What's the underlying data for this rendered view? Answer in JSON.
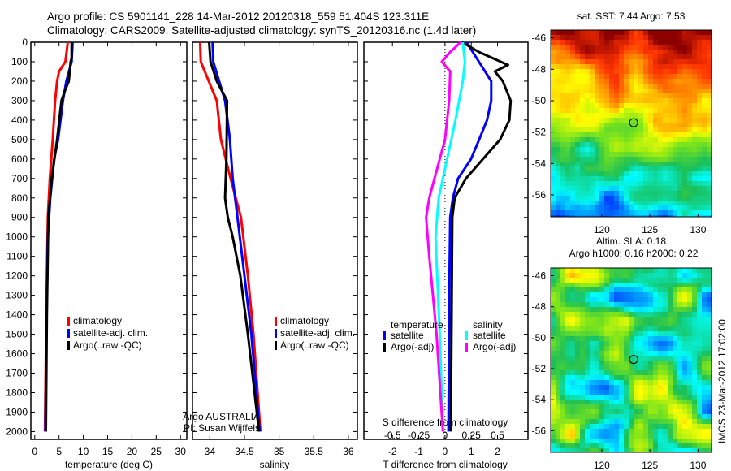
{
  "title_line1": "Argo profile: CS 5901141_228 14-Mar-2012 20120318_559 51.404S 123.311E",
  "title_line2": "Climatology: CARS2009. Satellite-adjusted climatology: synTS_20120316.nc (1.4d later)",
  "colors": {
    "climatology": "#ff0000",
    "satellite": "#0000ff",
    "argo": "#000000",
    "s_satellite": "#00ffff",
    "s_argo": "#ff00ff"
  },
  "chart_data": [
    {
      "type": "line",
      "id": "temperature",
      "xlabel": "temperature (deg C)",
      "ylabel": "depth",
      "xlim": [
        -0.8,
        31.3
      ],
      "ylim": [
        0,
        2040
      ],
      "y_reversed": true,
      "xticks": [
        0,
        5,
        10,
        15,
        20,
        25,
        30
      ],
      "yticks": [
        0,
        100,
        200,
        300,
        400,
        500,
        600,
        700,
        800,
        900,
        1000,
        1100,
        1200,
        1300,
        1400,
        1500,
        1600,
        1700,
        1800,
        1900,
        2000
      ],
      "legend": [
        "climatology",
        "satellite-adj. clim.",
        "Argo(..raw -QC)"
      ],
      "series": [
        {
          "name": "climatology",
          "color": "#ff0000",
          "depth": [
            0,
            100,
            150,
            200,
            300,
            500,
            700,
            900,
            1200,
            1600,
            2000
          ],
          "values": [
            6.8,
            6.3,
            5.0,
            4.6,
            4.2,
            3.7,
            3.1,
            2.7,
            2.5,
            2.3,
            2.1
          ]
        },
        {
          "name": "satellite-adj. clim.",
          "color": "#0000ff",
          "depth": [
            0,
            100,
            200,
            300,
            400,
            500,
            600,
            800,
            1000,
            1500,
            2000
          ],
          "values": [
            7.8,
            7.6,
            6.5,
            5.8,
            5.3,
            4.8,
            4.0,
            3.2,
            2.7,
            2.4,
            2.2
          ]
        },
        {
          "name": "Argo(..raw -QC)",
          "color": "#000000",
          "depth": [
            0,
            80,
            100,
            200,
            250,
            300,
            500,
            700,
            900,
            1400,
            2000
          ],
          "values": [
            7.6,
            7.6,
            7.4,
            7.0,
            6.2,
            5.5,
            4.6,
            3.5,
            2.8,
            2.5,
            2.3
          ]
        }
      ]
    },
    {
      "type": "line",
      "id": "salinity",
      "xlabel": "salinity",
      "xlim": [
        33.75,
        36.13
      ],
      "ylim": [
        0,
        2040
      ],
      "y_reversed": true,
      "xticks": [
        34,
        34.5,
        35,
        35.5,
        36
      ],
      "legend": [
        "climatology",
        "satellite-adj. clim.",
        "Argo(..raw -QC)"
      ],
      "annotation": [
        "Argo AUSTRALIA",
        "PI: Susan Wijffels"
      ],
      "series": [
        {
          "name": "climatology",
          "color": "#ff0000",
          "depth": [
            0,
            100,
            300,
            500,
            700,
            900,
            1200,
            1500,
            2000
          ],
          "values": [
            33.86,
            33.87,
            34.1,
            34.16,
            34.3,
            34.45,
            34.55,
            34.63,
            34.73
          ]
        },
        {
          "name": "satellite-adj. clim.",
          "color": "#0000ff",
          "depth": [
            0,
            100,
            300,
            500,
            700,
            900,
            1200,
            1500,
            2000
          ],
          "values": [
            34.04,
            34.05,
            34.22,
            34.29,
            34.33,
            34.4,
            34.5,
            34.6,
            34.72
          ]
        },
        {
          "name": "Argo(..raw -QC)",
          "color": "#000000",
          "depth": [
            0,
            100,
            200,
            300,
            600,
            800,
            900,
            1000,
            1200,
            1500,
            2000
          ],
          "values": [
            33.99,
            34.01,
            34.1,
            34.25,
            34.24,
            34.22,
            34.26,
            34.33,
            34.44,
            34.55,
            34.71
          ]
        }
      ]
    },
    {
      "type": "line",
      "id": "difference",
      "xlabel": "T difference from climatology",
      "x2label": "S difference from climatology",
      "xlim": [
        -3.09,
        3.16
      ],
      "ylim": [
        0,
        2040
      ],
      "y_reversed": true,
      "xticks": [
        -2,
        -1,
        0,
        1,
        2
      ],
      "x2ticks": [
        -0.5,
        -0.25,
        0,
        0.25,
        0.5
      ],
      "legend_temperature": {
        "title": "temperature",
        "items": [
          "satellite",
          "Argo(-adj)"
        ]
      },
      "legend_salinity": {
        "title": "salinity",
        "items": [
          "satellite",
          "Argo(-adj)"
        ]
      },
      "series": [
        {
          "name": "T satellite",
          "axis": "T",
          "color": "#0000ff",
          "depth": [
            0,
            100,
            200,
            300,
            400,
            500,
            600,
            700,
            800,
            900,
            1200,
            2000
          ],
          "values": [
            0.82,
            1.29,
            1.76,
            1.76,
            1.6,
            1.3,
            0.99,
            0.5,
            0.3,
            0.2,
            0.17,
            0.13
          ]
        },
        {
          "name": "T Argo(-adj)",
          "axis": "T",
          "color": "#000000",
          "depth": [
            0,
            50,
            117,
            150,
            200,
            300,
            400,
            500,
            600,
            700,
            800,
            900,
            2000
          ],
          "values": [
            0.65,
            1.29,
            2.4,
            1.9,
            2.2,
            2.5,
            2.45,
            2.1,
            1.45,
            0.8,
            0.37,
            0.28,
            0.22
          ]
        },
        {
          "name": "S satellite",
          "axis": "S",
          "color": "#00ffff",
          "depth": [
            0,
            100,
            200,
            400,
            600,
            800,
            1000,
            1500,
            2000
          ],
          "values": [
            0.17,
            0.19,
            0.17,
            0.1,
            0.02,
            -0.06,
            -0.09,
            -0.05,
            -0.02
          ]
        },
        {
          "name": "S Argo(-adj)",
          "axis": "S",
          "color": "#ff00ff",
          "depth": [
            0,
            50,
            100,
            150,
            300,
            500,
            600,
            800,
            900,
            1100,
            1500,
            2000
          ],
          "values": [
            0.15,
            0.05,
            -0.03,
            0.05,
            0.04,
            0.0,
            -0.05,
            -0.15,
            -0.18,
            -0.15,
            -0.08,
            -0.02
          ]
        }
      ]
    },
    {
      "type": "heatmap",
      "id": "sst_map",
      "title": "sat. SST: 7.44 Argo: 7.53",
      "xlim": [
        114.7,
        131.4
      ],
      "ylim": [
        -57.4,
        -45.5
      ],
      "xticks": [
        120,
        125,
        130
      ],
      "yticks": [
        -46,
        -48,
        -50,
        -52,
        -54,
        -56
      ],
      "marker": [
        123.311,
        -51.404
      ]
    },
    {
      "type": "heatmap",
      "id": "sla_map",
      "title_line1": "Altim. SLA: 0.18",
      "title_line2": "Argo h1000: 0.16 h2000: 0.22",
      "xlim": [
        114.7,
        131.4
      ],
      "ylim": [
        -57.4,
        -45.5
      ],
      "xticks": [
        120,
        125,
        130
      ],
      "yticks": [
        -46,
        -48,
        -50,
        -52,
        -54,
        -56
      ],
      "marker": [
        123.311,
        -51.404
      ]
    }
  ],
  "credit": "IMOS 23-Mar-2012 17:02:00"
}
